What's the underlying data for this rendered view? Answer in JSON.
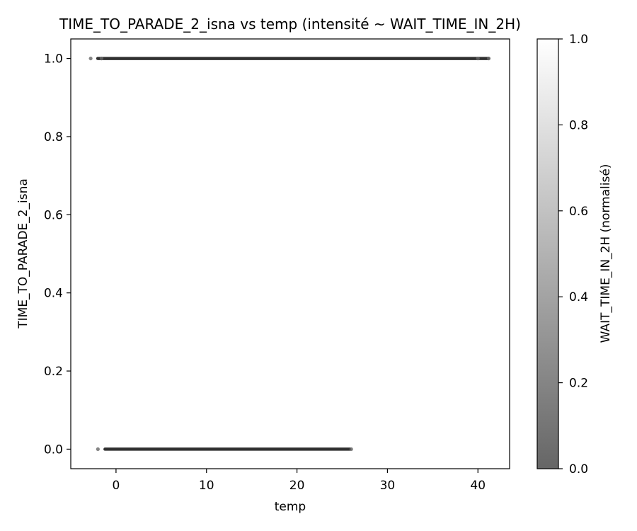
{
  "chart_data": {
    "type": "scatter",
    "title": "TIME_TO_PARADE_2_isna vs temp (intensité ~ WAIT_TIME_IN_2H)",
    "xlabel": "temp",
    "ylabel": "TIME_TO_PARADE_2_isna",
    "xlim": [
      -5,
      43.5
    ],
    "ylim": [
      -0.05,
      1.05
    ],
    "x_ticks": [
      0,
      10,
      20,
      30,
      40
    ],
    "x_tick_labels": [
      "0",
      "10",
      "20",
      "30",
      "40"
    ],
    "y_ticks": [
      0.0,
      0.2,
      0.4,
      0.6,
      0.8,
      1.0
    ],
    "y_tick_labels": [
      "0.0",
      "0.2",
      "0.4",
      "0.6",
      "0.8",
      "1.0"
    ],
    "grid": false,
    "colormap": "gray",
    "colorbar": {
      "label": "WAIT_TIME_IN_2H (normalisé)",
      "range": [
        0.0,
        1.0
      ],
      "ticks": [
        0.0,
        0.2,
        0.4,
        0.6,
        0.8,
        1.0
      ],
      "tick_labels": [
        "0.0",
        "0.2",
        "0.4",
        "0.6",
        "0.8",
        "1.0"
      ],
      "color_low": "#666666",
      "color_high": "#ffffff"
    },
    "series": [
      {
        "y": 1,
        "x_range": [
          -2.8,
          41.3
        ],
        "points": [
          {
            "x": -2.8,
            "v": 0.0
          },
          {
            "x": -1.6,
            "v": 0.0
          },
          {
            "x": 40.0,
            "v": 0.0
          },
          {
            "x": 41.2,
            "v": 0.0
          }
        ]
      },
      {
        "y": 0,
        "x_range": [
          -2.0,
          26.0
        ],
        "points": [
          {
            "x": -2.0,
            "v": 0.0
          },
          {
            "x": 26.0,
            "v": 0.0
          }
        ]
      }
    ]
  }
}
